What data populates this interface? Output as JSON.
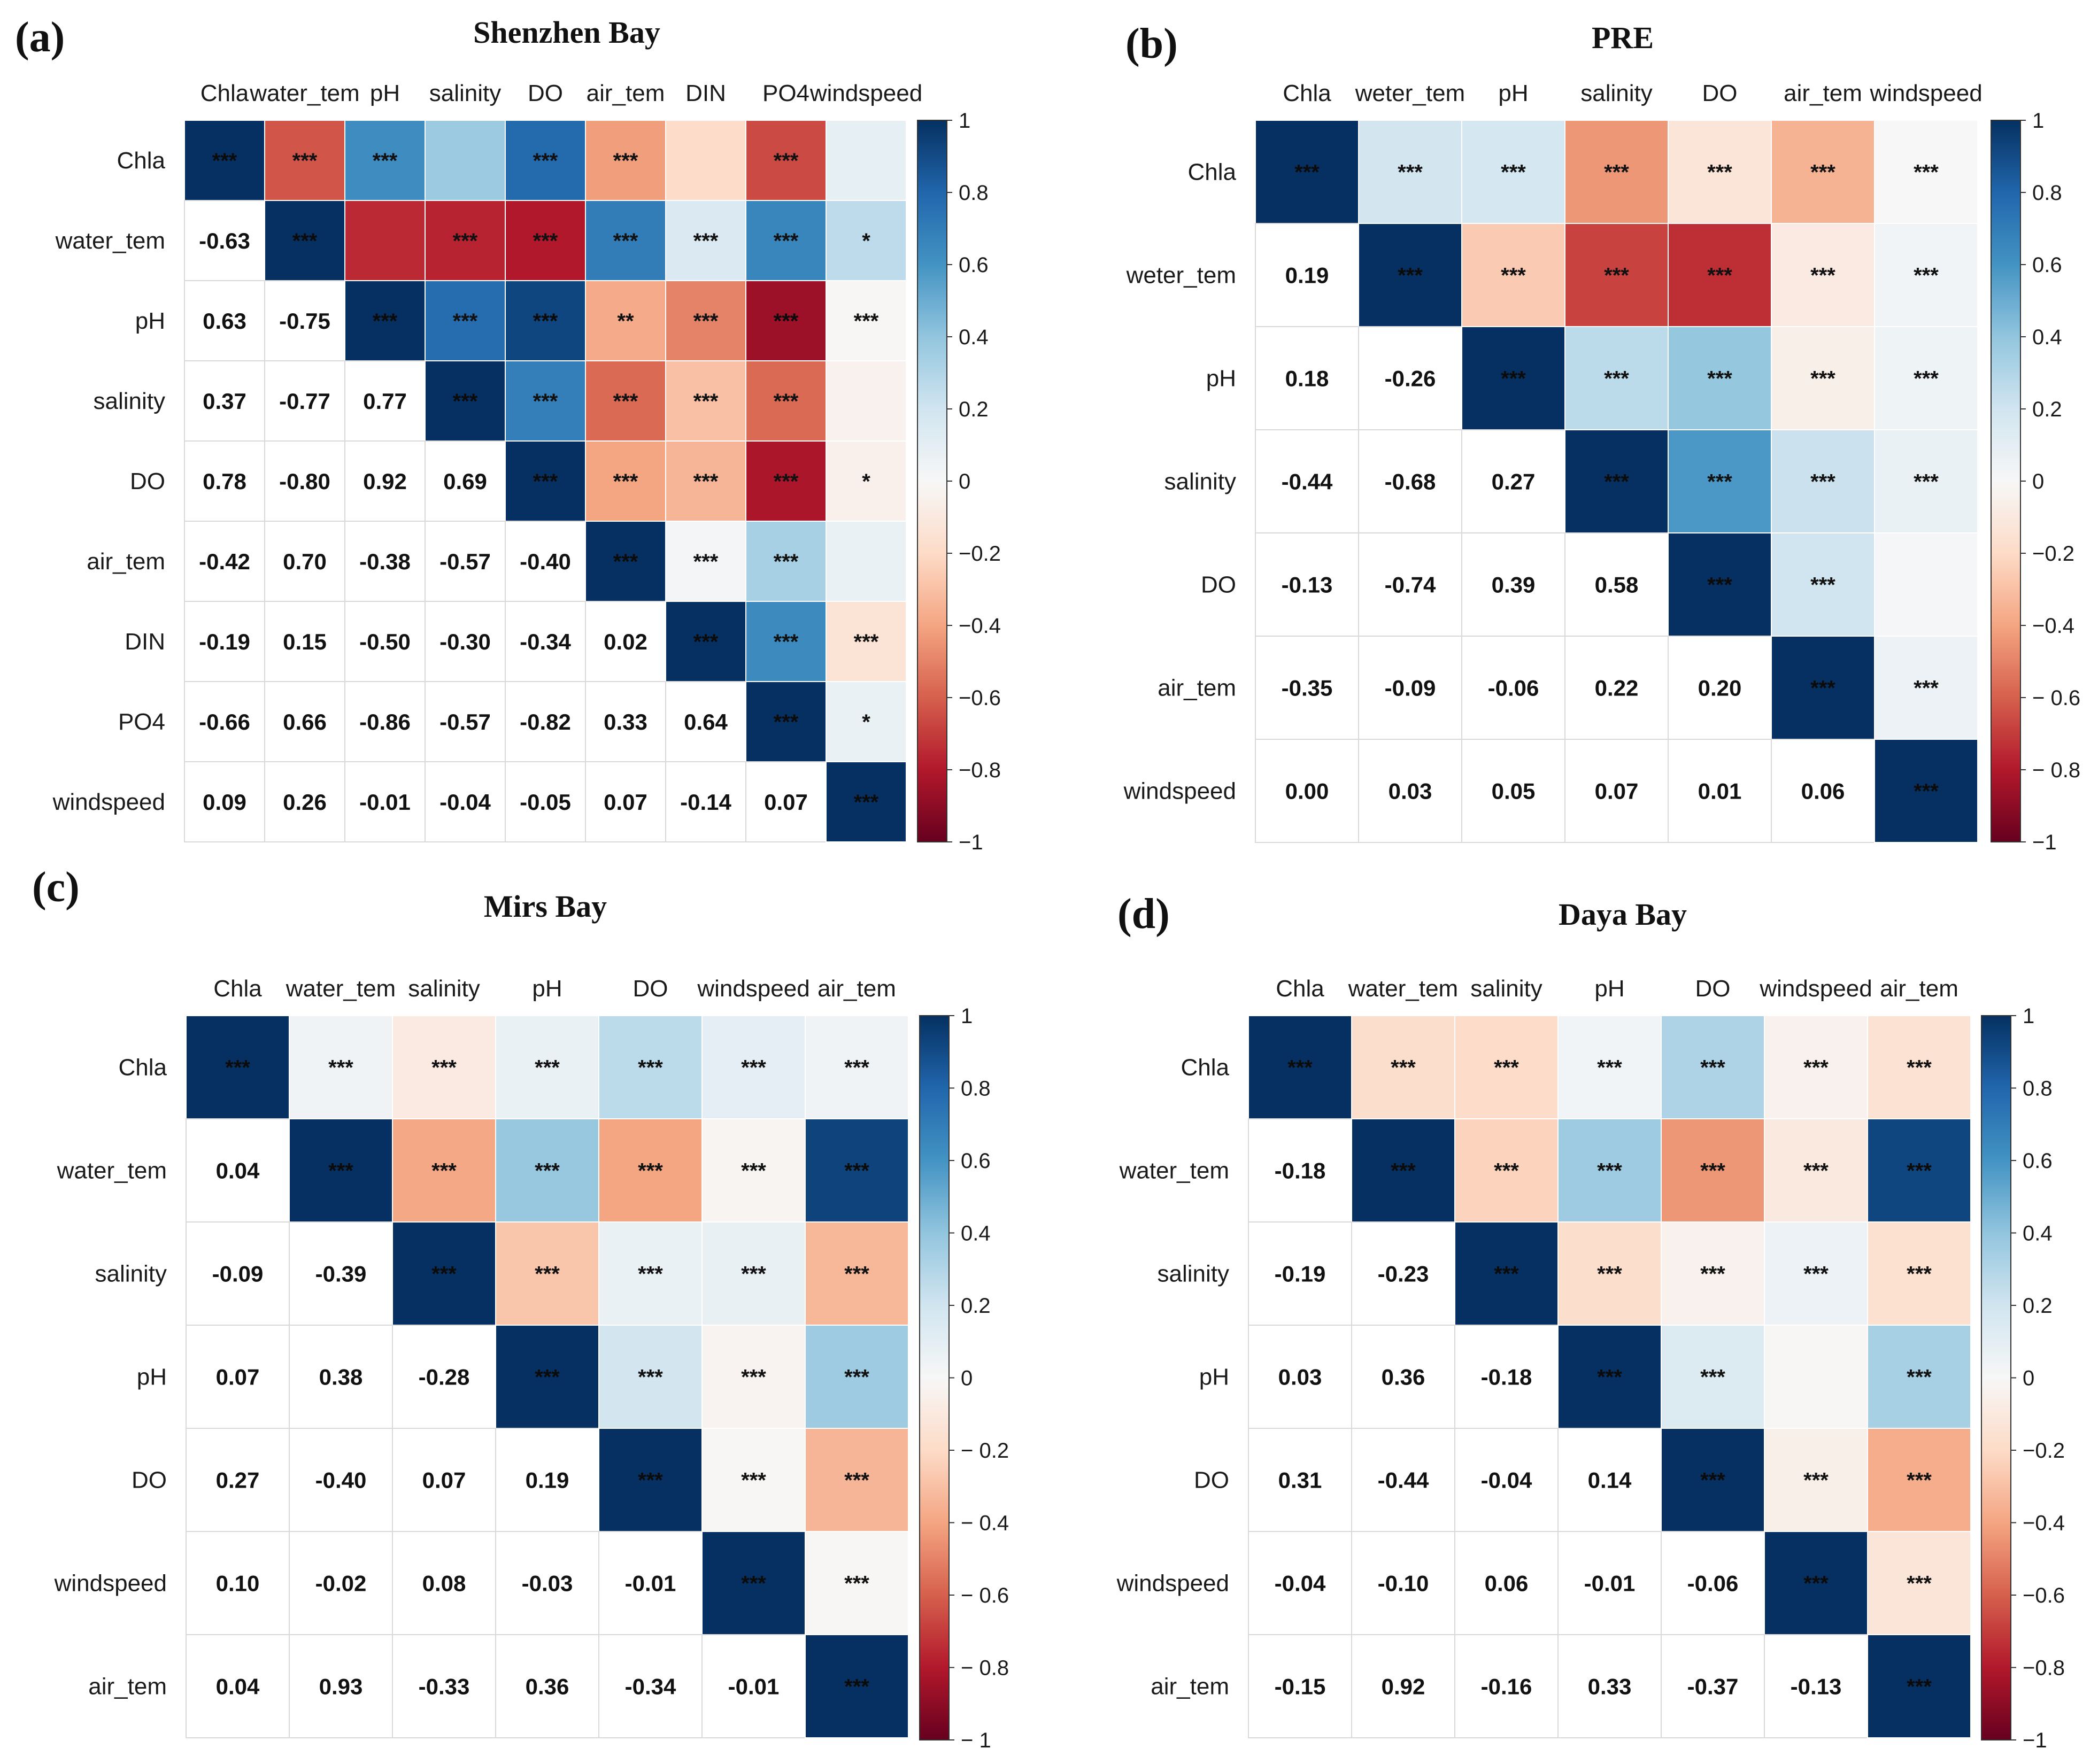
{
  "chart_data": [
    {
      "type": "heatmap",
      "panel_label": "(a)",
      "title": "Shenzhen Bay",
      "variables": [
        "Chla",
        "water_tem",
        "pH",
        "salinity",
        "DO",
        "air_tem",
        "DIN",
        "PO4",
        "windspeed"
      ],
      "lower": [
        [],
        [
          -0.63
        ],
        [
          0.63,
          -0.75
        ],
        [
          0.37,
          -0.77,
          0.77
        ],
        [
          0.78,
          -0.8,
          0.92,
          0.69
        ],
        [
          -0.42,
          0.7,
          -0.38,
          -0.57,
          -0.4
        ],
        [
          -0.19,
          0.15,
          -0.5,
          -0.3,
          -0.34,
          0.02
        ],
        [
          -0.66,
          0.66,
          -0.86,
          -0.57,
          -0.82,
          0.33,
          0.64
        ],
        [
          0.09,
          0.26,
          -0.01,
          -0.04,
          -0.05,
          0.07,
          -0.14,
          0.07
        ]
      ],
      "lower_text": [
        [],
        [
          "-0.63"
        ],
        [
          "0.63",
          "-0.75"
        ],
        [
          "0.37",
          "-0.77",
          "0.77"
        ],
        [
          "0.78",
          "-0.80",
          "0.92",
          "0.69"
        ],
        [
          "-0.42",
          "0.70",
          "-0.38",
          "-0.57",
          "-0.40"
        ],
        [
          "-0.19",
          "0.15",
          "-0.50",
          "-0.30",
          "-0.34",
          "0.02"
        ],
        [
          "-0.66",
          "0.66",
          "-0.86",
          "-0.57",
          "-0.82",
          "0.33",
          "0.64"
        ],
        [
          "0.09",
          "0.26",
          "-0.01",
          "-0.04",
          "-0.05",
          "0.07",
          "-0.14",
          "0.07"
        ]
      ],
      "stars": [
        [
          "***",
          "***",
          "***",
          "",
          "***",
          "***",
          "",
          "***",
          ""
        ],
        [
          "",
          "***",
          "",
          "***",
          "***",
          "***",
          "***",
          "***",
          "*"
        ],
        [
          "",
          "",
          "***",
          "***",
          "***",
          "**",
          "***",
          "***",
          "***"
        ],
        [
          "",
          "",
          "",
          "***",
          "***",
          "***",
          "***",
          "***",
          ""
        ],
        [
          "",
          "",
          "",
          "",
          "***",
          "***",
          "***",
          "***",
          "*"
        ],
        [
          "",
          "",
          "",
          "",
          "",
          "***",
          "***",
          "***",
          ""
        ],
        [
          "",
          "",
          "",
          "",
          "",
          "",
          "***",
          "***",
          "***"
        ],
        [
          "",
          "",
          "",
          "",
          "",
          "",
          "",
          "***",
          "*"
        ],
        [
          "",
          "",
          "",
          "",
          "",
          "",
          "",
          "",
          "***"
        ]
      ],
      "colorbar_ticks": [
        "1",
        "0.8",
        "0.6",
        "0.4",
        "0.2",
        "0",
        "−0.2",
        "−0.4",
        "−0.6",
        "−0.8",
        "−1"
      ],
      "value_range": [
        -1,
        1
      ]
    },
    {
      "type": "heatmap",
      "panel_label": "(b)",
      "title": "PRE",
      "variables": [
        "Chla",
        "weter_tem",
        "pH",
        "salinity",
        "DO",
        "air_tem",
        "windspeed"
      ],
      "lower": [
        [],
        [
          0.19
        ],
        [
          0.18,
          -0.26
        ],
        [
          -0.44,
          -0.68,
          0.27
        ],
        [
          -0.13,
          -0.74,
          0.39,
          0.58
        ],
        [
          -0.35,
          -0.09,
          -0.06,
          0.22,
          0.2
        ],
        [
          0.0,
          0.03,
          0.05,
          0.07,
          0.01,
          0.06
        ]
      ],
      "lower_text": [
        [],
        [
          "0.19"
        ],
        [
          "0.18",
          "-0.26"
        ],
        [
          "-0.44",
          "-0.68",
          "0.27"
        ],
        [
          "-0.13",
          "-0.74",
          "0.39",
          "0.58"
        ],
        [
          "-0.35",
          "-0.09",
          "-0.06",
          "0.22",
          "0.20"
        ],
        [
          "0.00",
          "0.03",
          "0.05",
          "0.07",
          "0.01",
          "0.06"
        ]
      ],
      "stars": [
        [
          "***",
          "***",
          "***",
          "***",
          "***",
          "***",
          "***"
        ],
        [
          "",
          "***",
          "***",
          "***",
          "***",
          "***",
          "***"
        ],
        [
          "",
          "",
          "***",
          "***",
          "***",
          "***",
          "***"
        ],
        [
          "",
          "",
          "",
          "***",
          "***",
          "***",
          "***"
        ],
        [
          "",
          "",
          "",
          "",
          "***",
          "***",
          ""
        ],
        [
          "",
          "",
          "",
          "",
          "",
          "***",
          "***"
        ],
        [
          "",
          "",
          "",
          "",
          "",
          "",
          "***"
        ]
      ],
      "colorbar_ticks": [
        "1",
        "0.8",
        "0.6",
        "0.4",
        "0.2",
        "0",
        "−0.2",
        "−0.4",
        "− 0.6",
        "− 0.8",
        "−1"
      ],
      "value_range": [
        -1,
        1
      ]
    },
    {
      "type": "heatmap",
      "panel_label": "(c)",
      "title": "Mirs Bay",
      "variables": [
        "Chla",
        "water_tem",
        "salinity",
        "pH",
        "DO",
        "windspeed",
        "air_tem"
      ],
      "lower": [
        [],
        [
          0.04
        ],
        [
          -0.09,
          -0.39
        ],
        [
          0.07,
          0.38,
          -0.28
        ],
        [
          0.27,
          -0.4,
          0.07,
          0.19
        ],
        [
          0.1,
          -0.02,
          0.08,
          -0.03,
          -0.01
        ],
        [
          0.04,
          0.93,
          -0.33,
          0.36,
          -0.34,
          -0.01
        ]
      ],
      "lower_text": [
        [],
        [
          "0.04"
        ],
        [
          "-0.09",
          "-0.39"
        ],
        [
          "0.07",
          "0.38",
          "-0.28"
        ],
        [
          "0.27",
          "-0.40",
          "0.07",
          "0.19"
        ],
        [
          "0.10",
          "-0.02",
          "0.08",
          "-0.03",
          "-0.01"
        ],
        [
          "0.04",
          "0.93",
          "-0.33",
          "0.36",
          "-0.34",
          "-0.01"
        ]
      ],
      "stars": [
        [
          "***",
          "***",
          "***",
          "***",
          "***",
          "***",
          "***"
        ],
        [
          "",
          "***",
          "***",
          "***",
          "***",
          "***",
          "***"
        ],
        [
          "",
          "",
          "***",
          "***",
          "***",
          "***",
          "***"
        ],
        [
          "",
          "",
          "",
          "***",
          "***",
          "***",
          "***"
        ],
        [
          "",
          "",
          "",
          "",
          "***",
          "***",
          "***"
        ],
        [
          "",
          "",
          "",
          "",
          "",
          "***",
          "***"
        ],
        [
          "",
          "",
          "",
          "",
          "",
          "",
          "***"
        ]
      ],
      "colorbar_ticks": [
        "1",
        "0.8",
        "0.6",
        "0.4",
        "0.2",
        "0",
        "− 0.2",
        "− 0.4",
        "− 0.6",
        "− 0.8",
        "− 1"
      ],
      "value_range": [
        -1,
        1
      ]
    },
    {
      "type": "heatmap",
      "panel_label": "(d)",
      "title": "Daya Bay",
      "variables": [
        "Chla",
        "water_tem",
        "salinity",
        "pH",
        "DO",
        "windspeed",
        "air_tem"
      ],
      "lower": [
        [],
        [
          -0.18
        ],
        [
          -0.19,
          -0.23
        ],
        [
          0.03,
          0.36,
          -0.18
        ],
        [
          0.31,
          -0.44,
          -0.04,
          0.14
        ],
        [
          -0.04,
          -0.1,
          0.06,
          -0.01,
          -0.06
        ],
        [
          -0.15,
          0.92,
          -0.16,
          0.33,
          -0.37,
          -0.13
        ]
      ],
      "lower_text": [
        [],
        [
          "-0.18"
        ],
        [
          "-0.19",
          "-0.23"
        ],
        [
          "0.03",
          "0.36",
          "-0.18"
        ],
        [
          "0.31",
          "-0.44",
          "-0.04",
          "0.14"
        ],
        [
          "-0.04",
          "-0.10",
          "0.06",
          "-0.01",
          "-0.06"
        ],
        [
          "-0.15",
          "0.92",
          "-0.16",
          "0.33",
          "-0.37",
          "-0.13"
        ]
      ],
      "stars": [
        [
          "***",
          "***",
          "***",
          "***",
          "***",
          "***",
          "***"
        ],
        [
          "",
          "***",
          "***",
          "***",
          "***",
          "***",
          "***"
        ],
        [
          "",
          "",
          "***",
          "***",
          "***",
          "***",
          "***"
        ],
        [
          "",
          "",
          "",
          "***",
          "***",
          "",
          "***"
        ],
        [
          "",
          "",
          "",
          "",
          "***",
          "***",
          "***"
        ],
        [
          "",
          "",
          "",
          "",
          "",
          "***",
          "***"
        ],
        [
          "",
          "",
          "",
          "",
          "",
          "",
          "***"
        ]
      ],
      "colorbar_ticks": [
        "1",
        "0.8",
        "0.6",
        "0.4",
        "0.2",
        "0",
        "−0.2",
        "−0.4",
        "−0.6",
        "−0.8",
        "−1"
      ],
      "value_range": [
        -1,
        1
      ]
    }
  ]
}
